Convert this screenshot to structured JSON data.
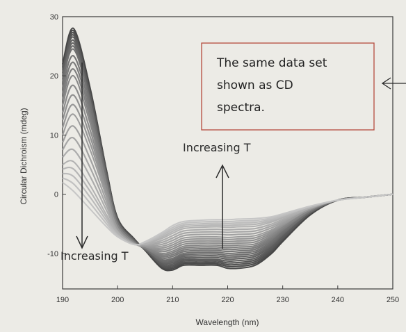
{
  "chart_data": {
    "type": "line",
    "title": "",
    "xlabel": "Wavelength (nm)",
    "ylabel": "Circular Dichroism (mdeg)",
    "xlim": [
      190,
      250
    ],
    "ylim": [
      -16,
      30
    ],
    "x_ticks": [
      "190",
      "200",
      "210",
      "220",
      "230",
      "240",
      "250"
    ],
    "y_ticks": [
      "30",
      "20",
      "10",
      "0",
      "-10"
    ],
    "grid": false,
    "legend": "none",
    "series_color_start": "#474747",
    "series_color_end": "#c6c6c6",
    "note_color": "#b44a3c",
    "series": [
      {
        "x": [
          190,
          192,
          195,
          198,
          200,
          203,
          205,
          208,
          210,
          212,
          215,
          218,
          220,
          222,
          225,
          228,
          230,
          235,
          240,
          245,
          250
        ],
        "values": [
          22,
          28,
          18,
          4,
          -4,
          -7.5,
          -9.5,
          -12.5,
          -12.8,
          -12,
          -12,
          -12,
          -12.5,
          -12.5,
          -12,
          -10,
          -8,
          -3.5,
          -1,
          -0.5,
          0
        ]
      },
      {
        "x": [
          190,
          192,
          195,
          198,
          200,
          203,
          205,
          208,
          210,
          212,
          215,
          218,
          220,
          222,
          225,
          228,
          230,
          235,
          240,
          245,
          250
        ],
        "values": [
          21,
          26.5,
          17,
          3.5,
          -4.3,
          -7.7,
          -9.4,
          -11.8,
          -11.8,
          -11,
          -11,
          -11,
          -11.3,
          -11.2,
          -10.8,
          -9,
          -7.2,
          -3.2,
          -1,
          -0.5,
          0
        ]
      },
      {
        "x": [
          190,
          192,
          195,
          198,
          200,
          203,
          205,
          208,
          210,
          212,
          215,
          218,
          220,
          222,
          225,
          228,
          230,
          235,
          240,
          245,
          250
        ],
        "values": [
          19,
          24.5,
          15.5,
          2.8,
          -4.6,
          -7.9,
          -9.3,
          -11,
          -10.8,
          -10,
          -9.8,
          -9.8,
          -10,
          -9.9,
          -9.6,
          -8,
          -6.4,
          -3,
          -1,
          -0.5,
          0
        ]
      },
      {
        "x": [
          190,
          192,
          195,
          198,
          200,
          203,
          205,
          208,
          210,
          212,
          215,
          218,
          220,
          222,
          225,
          228,
          230,
          235,
          240,
          245,
          250
        ],
        "values": [
          15,
          20,
          12,
          1.5,
          -5.2,
          -8.1,
          -9.1,
          -10,
          -9.6,
          -8.8,
          -8.6,
          -8.6,
          -8.7,
          -8.6,
          -8.4,
          -7,
          -5.6,
          -2.7,
          -1,
          -0.5,
          0
        ]
      },
      {
        "x": [
          190,
          192,
          195,
          198,
          200,
          203,
          205,
          208,
          210,
          212,
          215,
          218,
          220,
          222,
          225,
          228,
          230,
          235,
          240,
          245,
          250
        ],
        "values": [
          10,
          13.5,
          7.5,
          -0.5,
          -5.8,
          -8.3,
          -8.8,
          -8.8,
          -8.2,
          -7.4,
          -7.2,
          -7.2,
          -7.3,
          -7.2,
          -7,
          -6,
          -5,
          -2.5,
          -1,
          -0.5,
          0
        ]
      },
      {
        "x": [
          190,
          192,
          195,
          198,
          200,
          203,
          205,
          208,
          210,
          212,
          215,
          218,
          220,
          222,
          225,
          228,
          230,
          235,
          240,
          245,
          250
        ],
        "values": [
          5,
          5.5,
          1.5,
          -3.5,
          -6.5,
          -8.4,
          -8.4,
          -7.5,
          -6.6,
          -5.8,
          -5.6,
          -5.5,
          -5.6,
          -5.5,
          -5.4,
          -4.7,
          -4,
          -2.3,
          -1,
          -0.5,
          0
        ]
      },
      {
        "x": [
          190,
          192,
          195,
          198,
          200,
          203,
          205,
          208,
          210,
          212,
          215,
          218,
          220,
          222,
          225,
          228,
          230,
          235,
          240,
          245,
          250
        ],
        "values": [
          2,
          0.5,
          -2.5,
          -5.5,
          -7.2,
          -8.5,
          -8,
          -6.5,
          -5.3,
          -4.6,
          -4.4,
          -4.3,
          -4.3,
          -4.2,
          -4.1,
          -3.8,
          -3.3,
          -2,
          -1,
          -0.5,
          0
        ]
      }
    ]
  },
  "annotations": {
    "increasing_t_left": "Increasing T",
    "increasing_t_right": "Increasing T",
    "note_lines": [
      "The same data set",
      "shown as CD",
      "spectra."
    ]
  }
}
